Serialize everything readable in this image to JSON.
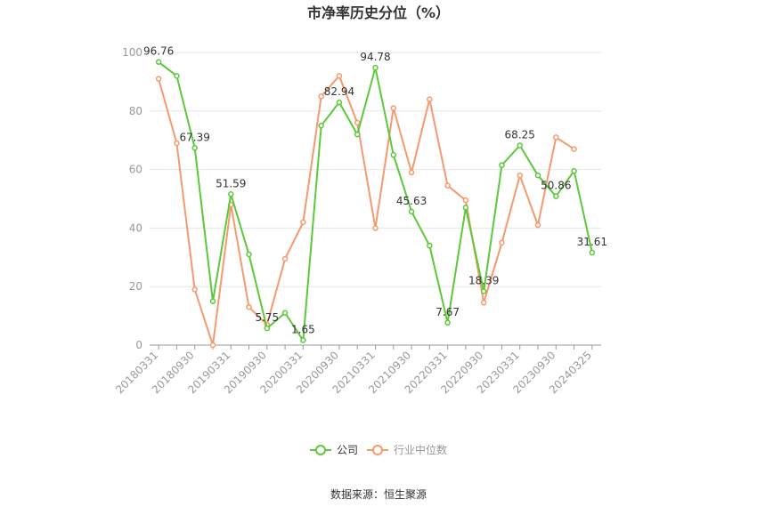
{
  "chart_data": {
    "type": "line",
    "title": "市净率历史分位（%）",
    "source": "数据来源：恒生聚源",
    "ylim": [
      0,
      100
    ],
    "yticks": [
      0,
      20,
      40,
      60,
      80,
      100
    ],
    "xtick_labels": [
      "20180331",
      "20180930",
      "20190331",
      "20190930",
      "20200331",
      "20200930",
      "20210331",
      "20210930",
      "20220331",
      "20220930",
      "20230331",
      "20230930",
      "20240325"
    ],
    "grid": true,
    "legend_position": "bottom-center",
    "x": [
      "20180331",
      "20180630",
      "20180930",
      "20181231",
      "20190331",
      "20190630",
      "20190930",
      "20191231",
      "20200331",
      "20200630",
      "20200930",
      "20201231",
      "20210331",
      "20210630",
      "20210930",
      "20211231",
      "20220331",
      "20220630",
      "20220930",
      "20221231",
      "20230331",
      "20230630",
      "20230930",
      "20231231",
      "20240325"
    ],
    "series": [
      {
        "name": "公司",
        "color": "#5cc93a",
        "values": [
          96.76,
          92.0,
          67.39,
          15.0,
          51.59,
          31.0,
          5.75,
          11.0,
          1.65,
          75.0,
          82.94,
          72.0,
          94.78,
          65.0,
          45.63,
          34.0,
          7.67,
          47.0,
          18.39,
          61.5,
          68.25,
          58.0,
          50.86,
          59.5,
          31.61
        ],
        "labels": {
          "0": "96.76",
          "2": "67.39",
          "4": "51.59",
          "6": "5.75",
          "8": "1.65",
          "10": "82.94",
          "12": "94.78",
          "14": "45.63",
          "16": "7.67",
          "18": "18.39",
          "20": "68.25",
          "22": "50.86",
          "24": "31.61"
        }
      },
      {
        "name": "行业中位数",
        "color": "#f59a6e",
        "values": [
          91.0,
          69.0,
          19.0,
          0.0,
          48.0,
          13.0,
          7.0,
          29.5,
          42.0,
          85.0,
          92.0,
          76.0,
          40.0,
          81.0,
          59.0,
          84.0,
          54.5,
          49.5,
          14.5,
          35.0,
          58.0,
          41.0,
          71.0,
          67.0,
          null
        ]
      }
    ]
  }
}
